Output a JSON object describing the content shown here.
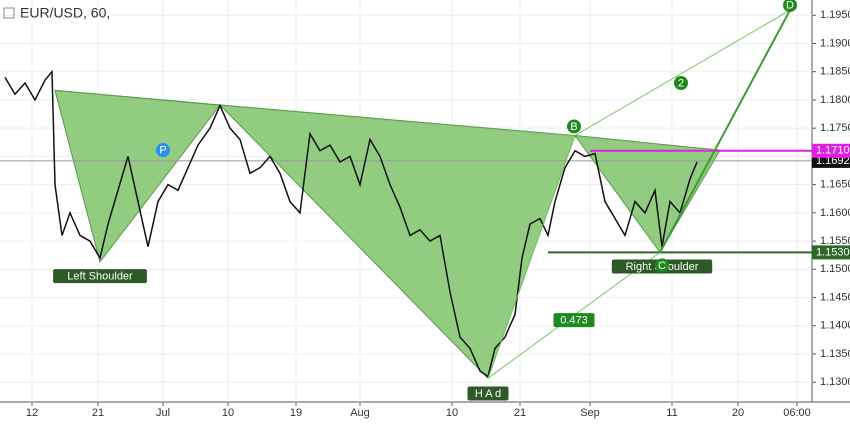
{
  "chart_data": {
    "type": "line",
    "symbol": "EUR/USD, 60,",
    "color": "#111111",
    "xlim": [
      0,
      812
    ],
    "ylim": [
      1.1265,
      1.1977
    ],
    "xticks": [
      {
        "value": 32,
        "label": "12"
      },
      {
        "value": 98,
        "label": "21"
      },
      {
        "value": 163,
        "label": "Jul"
      },
      {
        "value": 228,
        "label": "10"
      },
      {
        "value": 296,
        "label": "19"
      },
      {
        "value": 360,
        "label": "Aug"
      },
      {
        "value": 452,
        "label": "10"
      },
      {
        "value": 520,
        "label": "21"
      },
      {
        "value": 590,
        "label": "Sep"
      },
      {
        "value": 672,
        "label": "11"
      },
      {
        "value": 738,
        "label": "20"
      },
      {
        "value": 797,
        "label": "06:00"
      }
    ],
    "yticks": [
      {
        "value": 1.13,
        "label": "1.1300"
      },
      {
        "value": 1.135,
        "label": "1.1350"
      },
      {
        "value": 1.14,
        "label": "1.1400"
      },
      {
        "value": 1.145,
        "label": "1.1450"
      },
      {
        "value": 1.15,
        "label": "1.1500"
      },
      {
        "value": 1.155,
        "label": "1.1550"
      },
      {
        "value": 1.16,
        "label": "1.1600"
      },
      {
        "value": 1.165,
        "label": "1.1650"
      },
      {
        "value": 1.17,
        "label": "1.1700"
      },
      {
        "value": 1.175,
        "label": "1.1750"
      },
      {
        "value": 1.18,
        "label": "1.1800"
      },
      {
        "value": 1.185,
        "label": "1.1850"
      },
      {
        "value": 1.19,
        "label": "1.1900"
      },
      {
        "value": 1.195,
        "label": "1.1950"
      }
    ],
    "x": [
      5,
      15,
      25,
      35,
      45,
      52,
      55,
      62,
      70,
      80,
      90,
      100,
      108,
      118,
      128,
      138,
      148,
      158,
      168,
      178,
      188,
      198,
      210,
      220,
      230,
      240,
      250,
      260,
      270,
      280,
      290,
      300,
      310,
      320,
      330,
      340,
      350,
      360,
      370,
      380,
      390,
      400,
      410,
      420,
      430,
      440,
      450,
      460,
      470,
      480,
      488,
      495,
      505,
      515,
      522,
      530,
      540,
      548,
      555,
      565,
      575,
      585,
      595,
      605,
      615,
      625,
      635,
      645,
      655,
      662,
      670,
      680,
      690,
      697
    ],
    "values": [
      1.184,
      1.181,
      1.183,
      1.18,
      1.1835,
      1.185,
      1.165,
      1.156,
      1.16,
      1.156,
      1.155,
      1.152,
      1.158,
      1.164,
      1.17,
      1.162,
      1.154,
      1.162,
      1.165,
      1.164,
      1.168,
      1.172,
      1.175,
      1.179,
      1.175,
      1.173,
      1.167,
      1.168,
      1.17,
      1.167,
      1.162,
      1.16,
      1.174,
      1.171,
      1.172,
      1.169,
      1.17,
      1.165,
      1.173,
      1.17,
      1.165,
      1.161,
      1.156,
      1.157,
      1.155,
      1.156,
      1.146,
      1.138,
      1.136,
      1.132,
      1.131,
      1.136,
      1.138,
      1.142,
      1.152,
      1.158,
      1.159,
      1.156,
      1.162,
      1.168,
      1.171,
      1.17,
      1.1705,
      1.162,
      1.159,
      1.156,
      1.162,
      1.16,
      1.164,
      1.154,
      1.162,
      1.16,
      1.166,
      1.169
    ],
    "shapes": [
      {
        "x": [
          55,
          100,
          220
        ],
        "y": [
          1.1817,
          1.1513,
          1.1791
        ],
        "color": "#8cc97a"
      },
      {
        "x": [
          55,
          220,
          720
        ],
        "y": [
          1.1817,
          1.1791,
          1.1711
        ],
        "color": "#8cc97a"
      },
      {
        "x": [
          220,
          488,
          575
        ],
        "y": [
          1.1791,
          1.1307,
          1.1737
        ],
        "color": "#8cc97a"
      },
      {
        "x": [
          575,
          660,
          720
        ],
        "y": [
          1.1737,
          1.153,
          1.1711
        ],
        "color": "#8cc97a"
      }
    ],
    "lines": [
      {
        "x": [
          488,
          575
        ],
        "y": [
          1.1307,
          1.1737
        ],
        "color": "#7cc46a",
        "width": 1
      },
      {
        "x": [
          575,
          790
        ],
        "y": [
          1.1737,
          1.1959
        ],
        "color": "#7cc46a",
        "width": 1
      },
      {
        "x": [
          488,
          660
        ],
        "y": [
          1.1307,
          1.153
        ],
        "color": "#7cc46a",
        "width": 1
      },
      {
        "x": [
          660,
          790
        ],
        "y": [
          1.153,
          1.1959
        ],
        "color": "#3f9a36",
        "width": 2
      }
    ],
    "levels": [
      {
        "value": 1.1692,
        "label": "1.1692",
        "color": "#999999",
        "box": "#111111",
        "x_start": 0
      },
      {
        "value": 1.171,
        "label": "1.1710",
        "color": "#e020e0",
        "box": "#e020e0",
        "x_start": 590
      },
      {
        "value": 1.153,
        "label": "1.1530",
        "color": "#2d6a27",
        "box": "#2d6a27",
        "x_start": 548
      }
    ],
    "labels": [
      {
        "text": "Left Shoulder",
        "x": 100,
        "y": 1.1488,
        "color": "#2d5a27"
      },
      {
        "text": "P",
        "x": 163,
        "y": 1.1711,
        "color": "#2a8ef0"
      },
      {
        "text": "H A d",
        "x": 488,
        "y": 1.128,
        "color": "#2d5a27"
      },
      {
        "text": "B",
        "x": 574,
        "y": 1.1753,
        "color": "#1e8a1e"
      },
      {
        "text": "Right Shoulder",
        "x": 662,
        "y": 1.1505,
        "color": "#2d5a27"
      },
      {
        "text": "C",
        "x": 662,
        "y": 1.1507,
        "color": "#1e8a1e"
      },
      {
        "text": "D",
        "x": 790,
        "y": 1.1968,
        "color": "#1e8a1e"
      },
      {
        "text": "2",
        "x": 681,
        "y": 1.183,
        "color": "#1e8a1e"
      },
      {
        "text": "0.473",
        "x": 574,
        "y": 1.141,
        "color": "#1e8a1e"
      }
    ]
  }
}
